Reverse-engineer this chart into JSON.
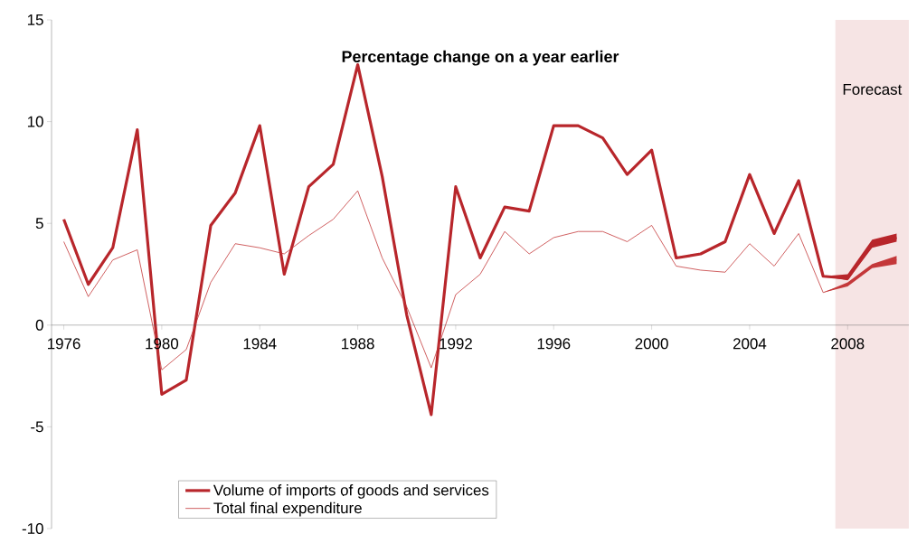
{
  "chart_data": {
    "type": "line",
    "title": "Percentage change on a year earlier",
    "x": [
      1976,
      1977,
      1978,
      1979,
      1980,
      1981,
      1982,
      1983,
      1984,
      1985,
      1986,
      1987,
      1988,
      1989,
      1990,
      1991,
      1992,
      1993,
      1994,
      1995,
      1996,
      1997,
      1998,
      1999,
      2000,
      2001,
      2002,
      2003,
      2004,
      2005,
      2006,
      2007,
      2008,
      2009,
      2010
    ],
    "series": [
      {
        "name": "Volume of imports of goods and services",
        "color": "#b8262b",
        "values": [
          5.2,
          2.0,
          3.8,
          9.6,
          -3.4,
          -2.7,
          4.9,
          6.5,
          9.8,
          2.5,
          6.8,
          7.9,
          12.8,
          7.3,
          0.5,
          -4.4,
          6.8,
          3.3,
          5.8,
          5.6,
          9.8,
          9.8,
          9.2,
          7.4,
          8.6,
          3.3,
          3.5,
          4.1,
          7.4,
          4.5,
          7.1,
          2.4,
          2.3,
          4.0,
          4.3
        ],
        "lower": [
          null,
          null,
          null,
          null,
          null,
          null,
          null,
          null,
          null,
          null,
          null,
          null,
          null,
          null,
          null,
          null,
          null,
          null,
          null,
          null,
          null,
          null,
          null,
          null,
          null,
          null,
          null,
          null,
          null,
          null,
          null,
          2.4,
          2.2,
          3.8,
          4.1
        ],
        "upper": [
          null,
          null,
          null,
          null,
          null,
          null,
          null,
          null,
          null,
          null,
          null,
          null,
          null,
          null,
          null,
          null,
          null,
          null,
          null,
          null,
          null,
          null,
          null,
          null,
          null,
          null,
          null,
          null,
          null,
          null,
          null,
          2.4,
          2.5,
          4.2,
          4.5
        ]
      },
      {
        "name": "Total final expenditure",
        "color": "#c4383a",
        "values": [
          4.1,
          1.4,
          3.2,
          3.7,
          -2.2,
          -1.2,
          2.1,
          4.0,
          3.8,
          3.5,
          4.4,
          5.2,
          6.6,
          3.3,
          0.9,
          -2.1,
          1.5,
          2.5,
          4.6,
          3.5,
          4.3,
          4.6,
          4.6,
          4.1,
          4.9,
          2.9,
          2.7,
          2.6,
          4.0,
          2.9,
          4.5,
          1.6,
          2.0,
          2.9,
          3.2
        ],
        "lower": [
          null,
          null,
          null,
          null,
          null,
          null,
          null,
          null,
          null,
          null,
          null,
          null,
          null,
          null,
          null,
          null,
          null,
          null,
          null,
          null,
          null,
          null,
          null,
          null,
          null,
          null,
          null,
          null,
          null,
          null,
          null,
          1.6,
          1.9,
          2.8,
          3.0
        ],
        "upper": [
          null,
          null,
          null,
          null,
          null,
          null,
          null,
          null,
          null,
          null,
          null,
          null,
          null,
          null,
          null,
          null,
          null,
          null,
          null,
          null,
          null,
          null,
          null,
          null,
          null,
          null,
          null,
          null,
          null,
          null,
          null,
          1.6,
          2.1,
          3.0,
          3.4
        ]
      }
    ],
    "xlim": [
      1975.5,
      2010.5
    ],
    "xticks": [
      1976,
      1980,
      1984,
      1988,
      1992,
      1996,
      2000,
      2004,
      2008
    ],
    "ylim": [
      -10,
      15
    ],
    "yticks": [
      -10,
      -5,
      0,
      5,
      10,
      15
    ],
    "bands": [
      {
        "axis": "x",
        "from": 2007.5,
        "to": 2010.5,
        "label": "Forecast",
        "color": "#f6e4e4"
      }
    ],
    "grid": false,
    "legend": "bottom left",
    "marker": "none",
    "line_style": "solid"
  }
}
